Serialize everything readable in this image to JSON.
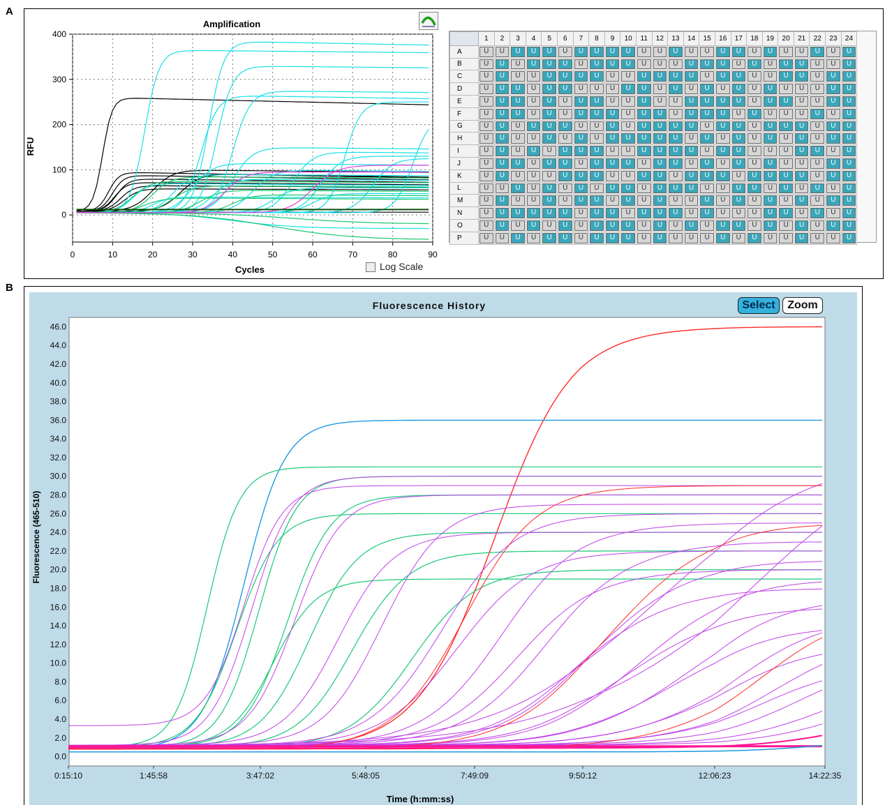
{
  "panels": {
    "a": "A",
    "b": "B"
  },
  "amplification": {
    "toolbar_icon": "amplification-curve-icon",
    "log_scale_label": "Log Scale",
    "chart_data": {
      "type": "line",
      "title": "Amplification",
      "xlabel": "Cycles",
      "ylabel": "RFU",
      "xlim": [
        0,
        90
      ],
      "ylim": [
        -60,
        400
      ],
      "xticks": [
        "0",
        "10",
        "20",
        "30",
        "40",
        "50",
        "60",
        "70",
        "80",
        "90"
      ],
      "yticks": [
        "0",
        "100",
        "200",
        "300",
        "400"
      ],
      "grid": true,
      "log_scale": false,
      "series_colors": [
        "#000000",
        "#18e0e8",
        "#18c870",
        "#e040e0"
      ],
      "curves": [
        {
          "color": "#000000",
          "baseline": 8,
          "plateau": 260,
          "midpoint": 7.5,
          "slope": 1.2,
          "drift": -12
        },
        {
          "color": "#000000",
          "baseline": 8,
          "plateau": 95,
          "midpoint": 9,
          "slope": 1.3,
          "drift": -10
        },
        {
          "color": "#000000",
          "baseline": 8,
          "plateau": 88,
          "midpoint": 10,
          "slope": 1.4,
          "drift": -8
        },
        {
          "color": "#000000",
          "baseline": 8,
          "plateau": 80,
          "midpoint": 11,
          "slope": 1.5,
          "drift": -6
        },
        {
          "color": "#000000",
          "baseline": 8,
          "plateau": 72,
          "midpoint": 10.5,
          "slope": 1.5,
          "drift": -4
        },
        {
          "color": "#000000",
          "baseline": 8,
          "plateau": 65,
          "midpoint": 12,
          "slope": 1.7,
          "drift": -3
        },
        {
          "color": "#000000",
          "baseline": 8,
          "plateau": 58,
          "midpoint": 13,
          "slope": 1.8,
          "drift": -2
        },
        {
          "color": "#000000",
          "baseline": 8,
          "plateau": 100,
          "midpoint": 20,
          "slope": 2.5,
          "drift": -5
        },
        {
          "color": "#000000",
          "baseline": 8,
          "plateau": 92,
          "midpoint": 27,
          "slope": 2.5,
          "drift": -8
        },
        {
          "color": "#000000",
          "baseline": 8,
          "plateau": 6,
          "midpoint": 10,
          "slope": 2,
          "drift": 0
        },
        {
          "color": "#18e0e8",
          "baseline": 5,
          "plateau": 365,
          "midpoint": 18,
          "slope": 1.8,
          "drift": -5
        },
        {
          "color": "#18e0e8",
          "baseline": 5,
          "plateau": 385,
          "midpoint": 34,
          "slope": 1.9,
          "drift": -10
        },
        {
          "color": "#18e0e8",
          "baseline": 5,
          "plateau": 330,
          "midpoint": 36,
          "slope": 2,
          "drift": -5
        },
        {
          "color": "#18e0e8",
          "baseline": 5,
          "plateau": 275,
          "midpoint": 40,
          "slope": 2.2,
          "drift": -5
        },
        {
          "color": "#18e0e8",
          "baseline": 5,
          "plateau": 265,
          "midpoint": 32,
          "slope": 2.1,
          "drift": -8
        },
        {
          "color": "#18e0e8",
          "baseline": 5,
          "plateau": 250,
          "midpoint": 68,
          "slope": 2,
          "drift": 0
        },
        {
          "color": "#18e0e8",
          "baseline": 5,
          "plateau": 220,
          "midpoint": 85,
          "slope": 2.2,
          "drift": 0
        },
        {
          "color": "#18e0e8",
          "baseline": 5,
          "plateau": 150,
          "midpoint": 40,
          "slope": 2.5,
          "drift": -5
        },
        {
          "color": "#18e0e8",
          "baseline": 5,
          "plateau": 140,
          "midpoint": 55,
          "slope": 2.5,
          "drift": -5
        },
        {
          "color": "#18e0e8",
          "baseline": 5,
          "plateau": 130,
          "midpoint": 62,
          "slope": 2.5,
          "drift": 0
        },
        {
          "color": "#18e0e8",
          "baseline": 5,
          "plateau": 125,
          "midpoint": 75,
          "slope": 2.5,
          "drift": 0
        },
        {
          "color": "#18e0e8",
          "baseline": 5,
          "plateau": 115,
          "midpoint": 30,
          "slope": 2.5,
          "drift": -5
        },
        {
          "color": "#18e0e8",
          "baseline": 5,
          "plateau": 100,
          "midpoint": 45,
          "slope": 2.6,
          "drift": -5
        },
        {
          "color": "#18e0e8",
          "baseline": 5,
          "plateau": 90,
          "midpoint": 25,
          "slope": 2.3,
          "drift": -3
        },
        {
          "color": "#18e0e8",
          "baseline": 5,
          "plateau": 80,
          "midpoint": 35,
          "slope": 2.3,
          "drift": -4
        },
        {
          "color": "#18e0e8",
          "baseline": 5,
          "plateau": 70,
          "midpoint": 15,
          "slope": 2,
          "drift": -4
        },
        {
          "color": "#18e0e8",
          "baseline": 5,
          "plateau": 60,
          "midpoint": 50,
          "slope": 2.5,
          "drift": 0
        },
        {
          "color": "#18e0e8",
          "baseline": 5,
          "plateau": 48,
          "midpoint": 60,
          "slope": 2.5,
          "drift": -2
        },
        {
          "color": "#18e0e8",
          "baseline": 5,
          "plateau": 40,
          "midpoint": 20,
          "slope": 2,
          "drift": -2
        },
        {
          "color": "#18e0e8",
          "baseline": 5,
          "plateau": -30,
          "midpoint": 40,
          "slope": 8,
          "drift": 0
        },
        {
          "color": "#18c870",
          "baseline": 5,
          "plateau": 85,
          "midpoint": 20,
          "slope": 2.3,
          "drift": -3
        },
        {
          "color": "#18c870",
          "baseline": 5,
          "plateau": 75,
          "midpoint": 15,
          "slope": 2.2,
          "drift": -3
        },
        {
          "color": "#18c870",
          "baseline": 5,
          "plateau": 65,
          "midpoint": 25,
          "slope": 2.5,
          "drift": -3
        },
        {
          "color": "#18c870",
          "baseline": 5,
          "plateau": 55,
          "midpoint": 32,
          "slope": 2.5,
          "drift": -3
        },
        {
          "color": "#18c870",
          "baseline": 5,
          "plateau": 45,
          "midpoint": 40,
          "slope": 2.5,
          "drift": -3
        },
        {
          "color": "#18c870",
          "baseline": 5,
          "plateau": 38,
          "midpoint": 18,
          "slope": 2.5,
          "drift": -3
        },
        {
          "color": "#18c870",
          "baseline": 5,
          "plateau": -55,
          "midpoint": 50,
          "slope": 10,
          "drift": 0
        },
        {
          "color": "#18c870",
          "baseline": 5,
          "plateau": -20,
          "midpoint": 55,
          "slope": 10,
          "drift": 0
        },
        {
          "color": "#e040e0",
          "baseline": 5,
          "plateau": 110,
          "midpoint": 60,
          "slope": 3,
          "drift": 0
        },
        {
          "color": "#e040e0",
          "baseline": 5,
          "plateau": 95,
          "midpoint": 38,
          "slope": 2.5,
          "drift": 0
        }
      ]
    }
  },
  "plate": {
    "columns": [
      "1",
      "2",
      "3",
      "4",
      "5",
      "6",
      "7",
      "8",
      "9",
      "10",
      "11",
      "12",
      "13",
      "14",
      "15",
      "16",
      "17",
      "18",
      "19",
      "20",
      "21",
      "22",
      "23",
      "24"
    ],
    "rows": [
      "A",
      "B",
      "C",
      "D",
      "E",
      "F",
      "G",
      "H",
      "I",
      "J",
      "K",
      "L",
      "M",
      "N",
      "O",
      "P"
    ],
    "well_label": "U",
    "highlight_color": "#3aa6b9",
    "plain_color": "#d6d6d6",
    "wells": [
      "001110111100100110100101",
      "010111011100011101011001",
      "010011110011110110011011",
      "011011000110101010100011",
      "011010110010011110110011",
      "011010111011011101000101",
      "010111001011110110111011",
      "010010101111101010101011",
      "010101110011110110001101",
      "011011011101101010100011",
      "010001110011011101111011",
      "001010101101110011010101",
      "010010110101001010101011",
      "011111011011101000110101",
      "010101011101010110101011",
      "001011011101000101001001"
    ]
  },
  "fluorescence": {
    "select_label": "Select",
    "zoom_label": "Zoom",
    "chart_data": {
      "type": "line",
      "title": "Fluorescence History",
      "xlabel": "Time (h:mm:ss)",
      "ylabel": "Fluorescence (465-510)",
      "x_seconds": [
        910,
        6358,
        13622,
        20885,
        28149,
        35412,
        43583,
        51755
      ],
      "xticks": [
        "0:15:10",
        "1:45:58",
        "3:47:02",
        "5:48:05",
        "7:49:09",
        "9:50:12",
        "12:06:23",
        "14:22:35"
      ],
      "ylim": [
        -1,
        47
      ],
      "yticks": [
        "0.0",
        "2.0",
        "4.0",
        "6.0",
        "8.0",
        "10.0",
        "12.0",
        "14.0",
        "16.0",
        "18.0",
        "20.0",
        "22.0",
        "24.0",
        "26.0",
        "28.0",
        "30.0",
        "32.0",
        "34.0",
        "36.0",
        "38.0",
        "40.0",
        "42.0",
        "44.0",
        "46.0"
      ],
      "grid": false,
      "series_colors": [
        "#ff2a2a",
        "#1f9ae0",
        "#18c878",
        "#c040e8",
        "#ff1493"
      ],
      "curves": [
        {
          "color": "#ff2a2a",
          "baseline": 0.8,
          "plateau": 46,
          "midpoint": 29500,
          "scale": 2600,
          "width": 1.4
        },
        {
          "color": "#1f9ae0",
          "baseline": 0.8,
          "plateau": 36,
          "midpoint": 12500,
          "scale": 1400,
          "width": 1.4
        },
        {
          "color": "#18c878",
          "baseline": 1.0,
          "plateau": 31,
          "midpoint": 10000,
          "scale": 1100,
          "width": 1.2
        },
        {
          "color": "#18c878",
          "baseline": 1.0,
          "plateau": 30,
          "midpoint": 13500,
          "scale": 1300,
          "width": 1.2
        },
        {
          "color": "#18c878",
          "baseline": 1.0,
          "plateau": 28,
          "midpoint": 15500,
          "scale": 1500,
          "width": 1.2
        },
        {
          "color": "#18c878",
          "baseline": 1.0,
          "plateau": 26,
          "midpoint": 12000,
          "scale": 1400,
          "width": 1.2
        },
        {
          "color": "#18c878",
          "baseline": 1.0,
          "plateau": 24,
          "midpoint": 17000,
          "scale": 1700,
          "width": 1.2
        },
        {
          "color": "#18c878",
          "baseline": 1.0,
          "plateau": 22,
          "midpoint": 20000,
          "scale": 1900,
          "width": 1.2
        },
        {
          "color": "#18c878",
          "baseline": 1.0,
          "plateau": 20,
          "midpoint": 24000,
          "scale": 2100,
          "width": 1.2
        },
        {
          "color": "#18c878",
          "baseline": 1.0,
          "plateau": 19,
          "midpoint": 14500,
          "scale": 1500,
          "width": 1.2
        },
        {
          "color": "#c040e8",
          "baseline": 1.2,
          "plateau": 30,
          "midpoint": 13000,
          "scale": 1400,
          "width": 1
        },
        {
          "color": "#c040e8",
          "baseline": 1.2,
          "plateau": 28,
          "midpoint": 16000,
          "scale": 1600,
          "width": 1
        },
        {
          "color": "#c040e8",
          "baseline": 1.2,
          "plateau": 27,
          "midpoint": 22000,
          "scale": 2000,
          "width": 1
        },
        {
          "color": "#c040e8",
          "baseline": 1.2,
          "plateau": 26,
          "midpoint": 26000,
          "scale": 2400,
          "width": 1
        },
        {
          "color": "#c040e8",
          "baseline": 1.2,
          "plateau": 25,
          "midpoint": 30000,
          "scale": 2600,
          "width": 1
        },
        {
          "color": "#c040e8",
          "baseline": 1.2,
          "plateau": 24,
          "midpoint": 19000,
          "scale": 1900,
          "width": 1
        },
        {
          "color": "#c040e8",
          "baseline": 1.2,
          "plateau": 23,
          "midpoint": 33000,
          "scale": 2800,
          "width": 1
        },
        {
          "color": "#c040e8",
          "baseline": 1.2,
          "plateau": 22,
          "midpoint": 27000,
          "scale": 2500,
          "width": 1
        },
        {
          "color": "#c040e8",
          "baseline": 1.2,
          "plateau": 21,
          "midpoint": 36000,
          "scale": 3000,
          "width": 1
        },
        {
          "color": "#c040e8",
          "baseline": 1.2,
          "plateau": 20,
          "midpoint": 31000,
          "scale": 2700,
          "width": 1
        },
        {
          "color": "#c040e8",
          "baseline": 1.2,
          "plateau": 19,
          "midpoint": 39000,
          "scale": 3100,
          "width": 1
        },
        {
          "color": "#c040e8",
          "baseline": 1.2,
          "plateau": 18,
          "midpoint": 35000,
          "scale": 3000,
          "width": 1
        },
        {
          "color": "#c040e8",
          "baseline": 1.2,
          "plateau": 17,
          "midpoint": 42000,
          "scale": 3300,
          "width": 1
        },
        {
          "color": "#c040e8",
          "baseline": 1.2,
          "plateau": 16,
          "midpoint": 38000,
          "scale": 3200,
          "width": 1
        },
        {
          "color": "#c040e8",
          "baseline": 1.2,
          "plateau": 15,
          "midpoint": 45000,
          "scale": 3400,
          "width": 1
        },
        {
          "color": "#c040e8",
          "baseline": 1.2,
          "plateau": 14,
          "midpoint": 41000,
          "scale": 3300,
          "width": 1
        },
        {
          "color": "#c040e8",
          "baseline": 1.2,
          "plateau": 13,
          "midpoint": 48000,
          "scale": 3500,
          "width": 1
        },
        {
          "color": "#c040e8",
          "baseline": 1.2,
          "plateau": 12,
          "midpoint": 44000,
          "scale": 3400,
          "width": 1
        },
        {
          "color": "#c040e8",
          "baseline": 1.2,
          "plateau": 11,
          "midpoint": 50000,
          "scale": 3600,
          "width": 1
        },
        {
          "color": "#c040e8",
          "baseline": 1.2,
          "plateau": 10,
          "midpoint": 47000,
          "scale": 3500,
          "width": 1
        },
        {
          "color": "#c040e8",
          "baseline": 1.2,
          "plateau": 32,
          "midpoint": 40000,
          "scale": 5000,
          "width": 1
        },
        {
          "color": "#c040e8",
          "baseline": 1.2,
          "plateau": 34,
          "midpoint": 46000,
          "scale": 6000,
          "width": 1
        },
        {
          "color": "#c040e8",
          "baseline": 1.2,
          "plateau": 9,
          "midpoint": 52000,
          "scale": 3600,
          "width": 1
        },
        {
          "color": "#c040e8",
          "baseline": 1.2,
          "plateau": 8,
          "midpoint": 54000,
          "scale": 3600,
          "width": 1
        },
        {
          "color": "#c040e8",
          "baseline": 3.3,
          "plateau": 29,
          "midpoint": 12500,
          "scale": 1300,
          "width": 1
        },
        {
          "color": "#ff2a2a",
          "baseline": 0.8,
          "plateau": 29,
          "midpoint": 27500,
          "scale": 2400,
          "width": 1
        },
        {
          "color": "#ff2a2a",
          "baseline": 0.8,
          "plateau": 25,
          "midpoint": 37000,
          "scale": 3200,
          "width": 1
        },
        {
          "color": "#ff2a2a",
          "baseline": 0.8,
          "plateau": 16,
          "midpoint": 47000,
          "scale": 3500,
          "width": 1
        },
        {
          "color": "#ff1493",
          "baseline": 0.9,
          "plateau": 5,
          "midpoint": 54000,
          "scale": 3500,
          "width": 2
        },
        {
          "color": "#ff1493",
          "baseline": 1.1,
          "plateau": 1.4,
          "midpoint": 60000,
          "scale": 3000,
          "width": 3
        },
        {
          "color": "#1f9ae0",
          "baseline": 0.5,
          "plateau": 2,
          "midpoint": 52000,
          "scale": 3000,
          "width": 1.5
        }
      ]
    }
  }
}
